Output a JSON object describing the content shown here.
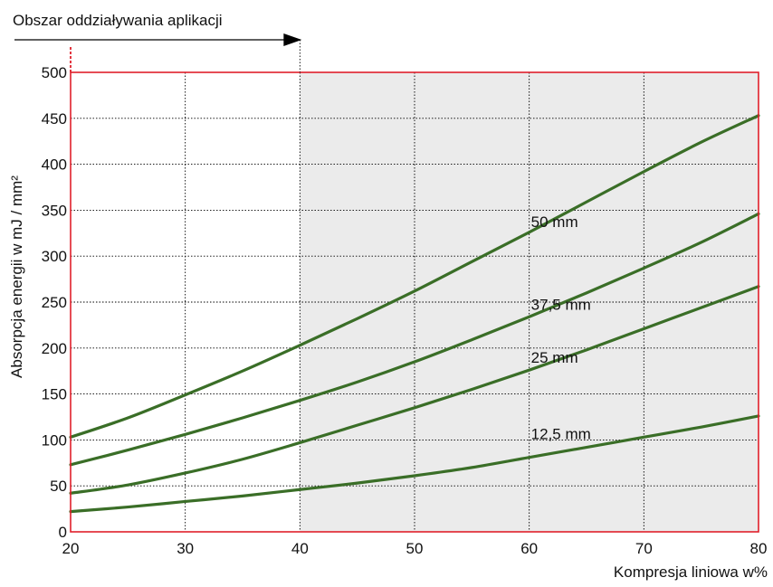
{
  "chart_data": {
    "type": "line",
    "title": "",
    "xlabel": "Kompresja liniowa w%",
    "ylabel": "Absorpcja energii w mJ / mm²",
    "xlim": [
      20,
      80
    ],
    "ylim": [
      0,
      500
    ],
    "x_ticks": [
      20,
      30,
      40,
      50,
      60,
      70,
      80
    ],
    "y_ticks": [
      0,
      50,
      100,
      150,
      200,
      250,
      300,
      350,
      400,
      450,
      500
    ],
    "x_tick_labels": [
      "20",
      "30",
      "40",
      "50",
      "60",
      "70",
      "80"
    ],
    "y_tick_labels": [
      "0",
      "50",
      "100",
      "150",
      "200",
      "250",
      "300",
      "350",
      "400",
      "450",
      "500"
    ],
    "grid": true,
    "shaded_region": {
      "x_from": 40,
      "x_to": 80
    },
    "annotation": {
      "text": "Obszar oddziaływania aplikacji",
      "x_from": 20,
      "x_to": 40
    },
    "x": [
      20,
      25,
      30,
      35,
      40,
      45,
      50,
      55,
      60,
      65,
      70,
      75,
      80
    ],
    "series": [
      {
        "name": "50 mm",
        "values": [
          103,
          124,
          149,
          175,
          203,
          232,
          262,
          294,
          326,
          359,
          392,
          424,
          453
        ]
      },
      {
        "name": "37,5 mm",
        "values": [
          73,
          89,
          106,
          124,
          143,
          163,
          185,
          209,
          234,
          260,
          287,
          315,
          346
        ]
      },
      {
        "name": "25 mm",
        "values": [
          42,
          51,
          64,
          79,
          97,
          116,
          135,
          155,
          176,
          198,
          221,
          244,
          267
        ]
      },
      {
        "name": "12,5 mm",
        "values": [
          22,
          27,
          33,
          39,
          46,
          53,
          61,
          70,
          81,
          92,
          103,
          114,
          126
        ]
      }
    ],
    "colors": {
      "series": "#3a6e27",
      "frame": "#e0202b",
      "shade": "#ebebeb",
      "annotation_marker": "#e0202b",
      "text": "#111111"
    }
  }
}
